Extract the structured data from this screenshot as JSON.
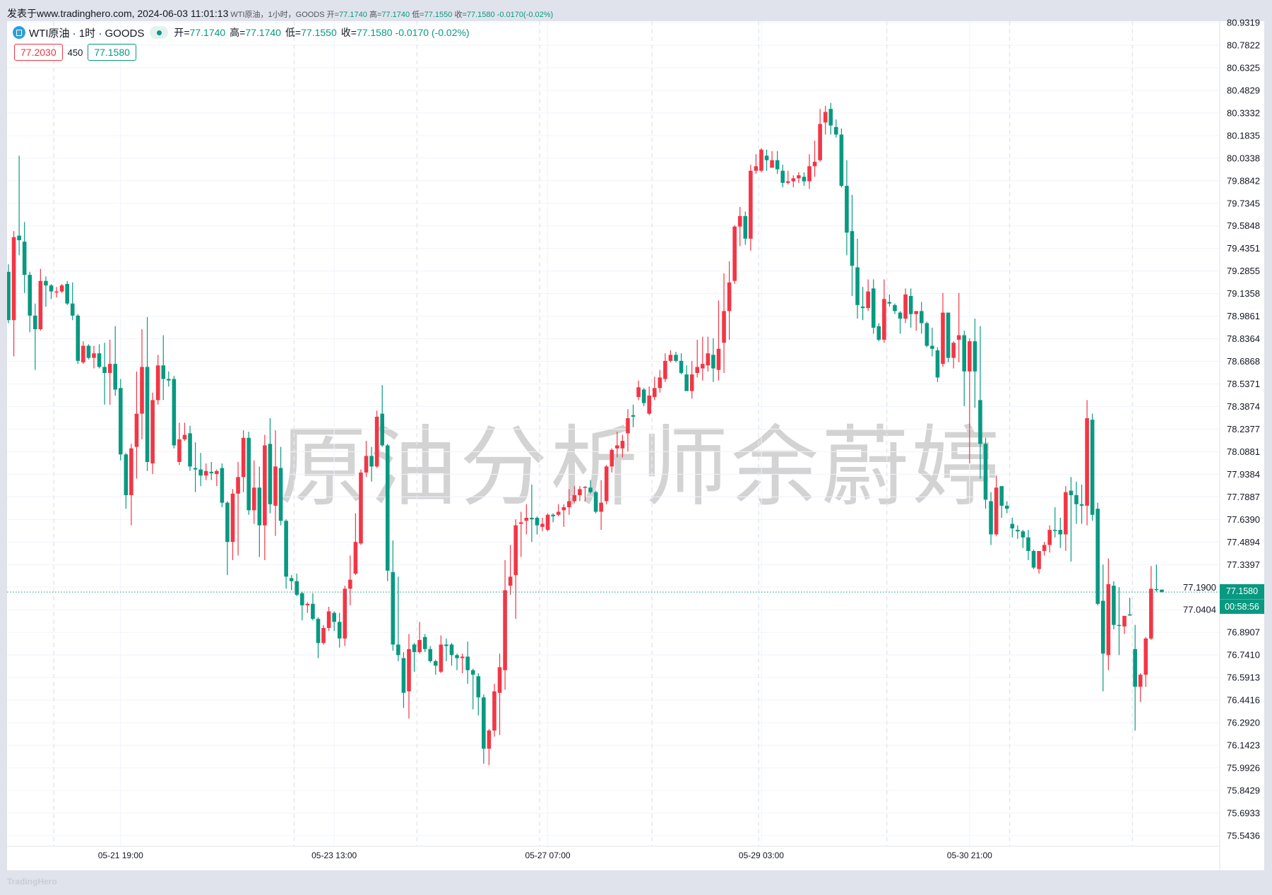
{
  "topbar": {
    "published": "发表于www.tradinghero.com, 2024-06-03 11:01:13",
    "summary_prefix": "WTI原油，1小时，GOODS",
    "o_label": "开=",
    "o": "77.1740",
    "h_label": "高=",
    "h": "77.1740",
    "l_label": "低=",
    "l": "77.1550",
    "c_label": "收=",
    "c": "77.1580",
    "change": "-0.0170(-0.02%)"
  },
  "legend": {
    "symbol": "WTI原油 · 1时 · GOODS",
    "o_label": "开=",
    "o": "77.1740",
    "h_label": "高=",
    "h": "77.1740",
    "l_label": "低=",
    "l": "77.1550",
    "c_label": "收=",
    "c": "77.1580",
    "change": "-0.0170 (-0.02%)",
    "status_icon": "market-open-dot"
  },
  "quote": {
    "sell": "77.2030",
    "spread": "450",
    "buy": "77.1580"
  },
  "watermark": "原油分析师余蔚婷",
  "footer_logo": "TradingHero",
  "price_tag": {
    "price": "77.1580",
    "countdown": "00:58:56"
  },
  "colors": {
    "up": "#f23645",
    "down": "#089981",
    "grid": "#f0f3fa",
    "axis_text": "#131722"
  },
  "chart_data": {
    "type": "candlestick",
    "title": "WTI原油 · 1时 · GOODS",
    "up_color_meaning": "red = rising (close > open), green = falling",
    "ylim": [
      75.47,
      80.9319
    ],
    "y_ticks": [
      "80.9319",
      "80.7822",
      "80.6325",
      "80.4829",
      "80.3332",
      "80.1835",
      "80.0338",
      "79.8842",
      "79.7345",
      "79.5848",
      "79.4351",
      "79.2855",
      "79.1358",
      "78.9861",
      "78.8364",
      "78.6868",
      "78.5371",
      "78.3874",
      "78.2377",
      "78.0881",
      "77.9384",
      "77.7887",
      "77.6390",
      "77.4894",
      "77.3397",
      "77.1900",
      "77.0404",
      "76.8907",
      "76.7410",
      "76.5913",
      "76.4416",
      "76.2920",
      "76.1423",
      "75.9926",
      "75.8429",
      "75.6933",
      "75.5436"
    ],
    "x_ticks": [
      {
        "label": "05-21 19:00",
        "bar": 21
      },
      {
        "label": "05-23 13:00",
        "bar": 61
      },
      {
        "label": "05-27 07:00",
        "bar": 101
      },
      {
        "label": "05-29 03:00",
        "bar": 141
      },
      {
        "label": "05-30 21:00",
        "bar": 180
      }
    ],
    "session_breaks": [
      9,
      54,
      77,
      100,
      121,
      141,
      165,
      188,
      211
    ],
    "last_price": 77.158,
    "grid": true,
    "ohlc": [
      [
        79.28,
        79.33,
        78.94,
        78.96
      ],
      [
        78.96,
        79.55,
        78.72,
        79.51
      ],
      [
        79.52,
        80.05,
        79.39,
        79.49
      ],
      [
        79.48,
        79.61,
        79.14,
        79.26
      ],
      [
        79.26,
        79.28,
        78.88,
        78.99
      ],
      [
        78.99,
        79.07,
        78.63,
        78.9
      ],
      [
        78.9,
        79.3,
        78.89,
        79.22
      ],
      [
        79.22,
        79.25,
        79.05,
        79.19
      ],
      [
        79.19,
        79.2,
        79.1,
        79.15
      ],
      [
        79.15,
        79.18,
        79.11,
        79.15
      ],
      [
        79.15,
        79.2,
        79.14,
        79.19
      ],
      [
        79.2,
        79.22,
        79.06,
        79.07
      ],
      [
        79.07,
        79.21,
        78.96,
        78.99
      ],
      [
        78.99,
        79.0,
        78.67,
        78.69
      ],
      [
        78.68,
        78.82,
        78.67,
        78.79
      ],
      [
        78.79,
        78.8,
        78.7,
        78.71
      ],
      [
        78.71,
        78.79,
        78.64,
        78.74
      ],
      [
        78.74,
        78.8,
        78.64,
        78.65
      ],
      [
        78.65,
        78.81,
        78.4,
        78.61
      ],
      [
        78.61,
        78.83,
        78.4,
        78.67
      ],
      [
        78.67,
        78.92,
        78.46,
        78.5
      ],
      [
        78.51,
        78.57,
        78.03,
        78.07
      ],
      [
        78.07,
        78.08,
        77.71,
        77.8
      ],
      [
        77.8,
        78.14,
        77.6,
        78.11
      ],
      [
        78.12,
        78.62,
        77.91,
        78.34
      ],
      [
        78.34,
        78.9,
        78.17,
        78.65
      ],
      [
        78.65,
        78.98,
        77.96,
        78.02
      ],
      [
        78.01,
        78.48,
        77.94,
        78.43
      ],
      [
        78.43,
        78.73,
        78.4,
        78.66
      ],
      [
        78.66,
        78.86,
        78.43,
        78.57
      ],
      [
        78.57,
        78.62,
        78.52,
        78.56
      ],
      [
        78.57,
        78.59,
        78.11,
        78.13
      ],
      [
        78.02,
        78.28,
        78.0,
        78.17
      ],
      [
        78.17,
        78.28,
        78.16,
        78.2
      ],
      [
        78.21,
        78.26,
        77.96,
        77.99
      ],
      [
        77.98,
        78.15,
        77.82,
        77.97
      ],
      [
        77.97,
        78.08,
        77.86,
        77.93
      ],
      [
        77.93,
        78.01,
        77.9,
        77.96
      ],
      [
        77.955,
        78.02,
        77.9,
        77.945
      ],
      [
        77.94,
        77.97,
        77.86,
        77.96
      ],
      [
        77.98,
        78.01,
        77.72,
        77.75
      ],
      [
        77.75,
        77.76,
        77.27,
        77.49
      ],
      [
        77.49,
        77.84,
        77.37,
        77.81
      ],
      [
        77.81,
        78.02,
        77.4,
        77.92
      ],
      [
        77.92,
        78.23,
        77.82,
        78.18
      ],
      [
        78.18,
        78.22,
        77.67,
        77.7
      ],
      [
        77.7,
        78.03,
        77.61,
        77.85
      ],
      [
        77.85,
        77.99,
        77.39,
        77.6
      ],
      [
        77.6,
        78.2,
        77.37,
        78.13
      ],
      [
        78.14,
        78.31,
        77.68,
        77.74
      ],
      [
        77.73,
        78.23,
        77.53,
        77.99
      ],
      [
        77.98,
        78.12,
        77.6,
        77.63
      ],
      [
        77.63,
        77.64,
        77.18,
        77.26
      ],
      [
        77.25,
        77.27,
        77.17,
        77.23
      ],
      [
        77.23,
        77.28,
        77.13,
        77.14
      ],
      [
        77.15,
        77.16,
        76.97,
        77.07
      ],
      [
        77.07,
        77.09,
        77.02,
        77.08
      ],
      [
        77.08,
        77.15,
        76.97,
        76.98
      ],
      [
        76.98,
        76.99,
        76.72,
        76.82
      ],
      [
        76.82,
        76.94,
        76.81,
        76.92
      ],
      [
        76.92,
        77.06,
        76.9,
        77.03
      ],
      [
        77.02,
        77.03,
        76.9,
        76.96
      ],
      [
        76.96,
        77.02,
        76.79,
        76.85
      ],
      [
        76.85,
        77.2,
        76.8,
        77.18
      ],
      [
        77.18,
        77.4,
        77.07,
        77.24
      ],
      [
        77.28,
        77.68,
        77.27,
        77.49
      ],
      [
        77.48,
        77.97,
        77.47,
        77.95
      ],
      [
        77.95,
        78.16,
        77.92,
        78.06
      ],
      [
        78.06,
        78.12,
        77.89,
        77.99
      ],
      [
        77.99,
        78.36,
        77.98,
        78.32
      ],
      [
        78.34,
        78.53,
        78.12,
        78.13
      ],
      [
        78.13,
        78.14,
        77.23,
        77.3
      ],
      [
        77.29,
        77.5,
        76.77,
        76.81
      ],
      [
        76.81,
        77.26,
        76.7,
        76.74
      ],
      [
        76.72,
        76.76,
        76.39,
        76.49
      ],
      [
        76.5,
        76.88,
        76.32,
        76.78
      ],
      [
        76.81,
        76.82,
        76.63,
        76.76
      ],
      [
        76.76,
        76.96,
        76.75,
        76.84
      ],
      [
        76.86,
        76.88,
        76.76,
        76.78
      ],
      [
        76.78,
        76.8,
        76.69,
        76.7
      ],
      [
        76.7,
        76.71,
        76.61,
        76.67
      ],
      [
        76.63,
        76.87,
        76.62,
        76.81
      ],
      [
        76.81,
        76.85,
        76.7,
        76.8
      ],
      [
        76.81,
        76.82,
        76.67,
        76.74
      ],
      [
        76.74,
        76.75,
        76.64,
        76.72
      ],
      [
        76.72,
        76.75,
        76.62,
        76.73
      ],
      [
        76.73,
        76.83,
        76.55,
        76.64
      ],
      [
        76.64,
        76.65,
        76.38,
        76.61
      ],
      [
        76.6,
        76.62,
        76.34,
        76.46
      ],
      [
        76.46,
        76.48,
        76.02,
        76.12
      ],
      [
        76.12,
        76.25,
        76.01,
        76.24
      ],
      [
        76.24,
        76.55,
        76.2,
        76.5
      ],
      [
        76.49,
        76.75,
        76.21,
        76.66
      ],
      [
        76.64,
        77.37,
        76.51,
        77.17
      ],
      [
        77.2,
        77.47,
        77.14,
        77.26
      ],
      [
        77.27,
        77.64,
        76.98,
        77.6
      ],
      [
        77.61,
        77.69,
        77.39,
        77.62
      ],
      [
        77.63,
        77.74,
        77.54,
        77.65
      ],
      [
        77.65,
        77.87,
        77.49,
        77.64
      ],
      [
        77.65,
        77.66,
        77.54,
        77.6
      ],
      [
        77.59,
        77.65,
        77.56,
        77.61
      ],
      [
        77.57,
        77.68,
        77.56,
        77.67
      ],
      [
        77.67,
        77.68,
        77.62,
        77.66
      ],
      [
        77.67,
        77.74,
        77.66,
        77.69
      ],
      [
        77.7,
        77.74,
        77.59,
        77.72
      ],
      [
        77.72,
        77.84,
        77.67,
        77.76
      ],
      [
        77.76,
        77.86,
        77.75,
        77.8
      ],
      [
        77.8,
        77.86,
        77.76,
        77.84
      ],
      [
        77.85,
        77.86,
        77.76,
        77.855
      ],
      [
        77.85,
        77.9,
        77.81,
        77.82
      ],
      [
        77.82,
        77.83,
        77.68,
        77.69
      ],
      [
        77.69,
        77.9,
        77.57,
        77.75
      ],
      [
        77.76,
        78.0,
        77.74,
        77.99
      ],
      [
        77.99,
        78.11,
        77.95,
        78.1
      ],
      [
        78.11,
        78.22,
        78.05,
        78.13
      ],
      [
        78.11,
        78.2,
        78.05,
        78.16
      ],
      [
        78.21,
        78.37,
        78.09,
        78.31
      ],
      [
        78.33,
        78.4,
        78.25,
        78.32
      ],
      [
        78.45,
        78.56,
        78.43,
        78.515
      ],
      [
        78.5,
        78.51,
        78.39,
        78.41
      ],
      [
        78.34,
        78.52,
        78.33,
        78.46
      ],
      [
        78.45,
        78.585,
        78.43,
        78.51
      ],
      [
        78.51,
        78.63,
        78.48,
        78.58
      ],
      [
        78.57,
        78.74,
        78.55,
        78.69
      ],
      [
        78.69,
        78.76,
        78.68,
        78.73
      ],
      [
        78.73,
        78.75,
        78.68,
        78.69
      ],
      [
        78.69,
        78.74,
        78.6,
        78.61
      ],
      [
        78.6,
        78.66,
        78.49,
        78.49
      ],
      [
        78.49,
        78.69,
        78.44,
        78.6
      ],
      [
        78.61,
        78.83,
        78.58,
        78.65
      ],
      [
        78.64,
        78.85,
        78.56,
        78.67
      ],
      [
        78.66,
        78.85,
        78.62,
        78.74
      ],
      [
        78.73,
        78.84,
        78.55,
        78.64
      ],
      [
        78.63,
        79.09,
        78.56,
        78.77
      ],
      [
        78.81,
        79.27,
        78.61,
        79.02
      ],
      [
        79.02,
        79.35,
        78.83,
        79.21
      ],
      [
        79.22,
        79.59,
        79.2,
        79.58
      ],
      [
        79.58,
        79.71,
        79.45,
        79.65
      ],
      [
        79.65,
        79.68,
        79.46,
        79.5
      ],
      [
        79.5,
        79.99,
        79.42,
        79.95
      ],
      [
        79.95,
        80.06,
        79.93,
        79.98
      ],
      [
        79.95,
        80.1,
        79.94,
        80.09
      ],
      [
        80.05,
        80.09,
        79.95,
        80.02
      ],
      [
        79.97,
        80.08,
        79.97,
        80.02
      ],
      [
        80.02,
        80.08,
        79.93,
        79.96
      ],
      [
        79.95,
        79.99,
        79.84,
        79.87
      ],
      [
        79.87,
        79.95,
        79.86,
        79.88
      ],
      [
        79.88,
        79.92,
        79.84,
        79.9
      ],
      [
        79.9,
        79.94,
        79.87,
        79.92
      ],
      [
        79.91,
        79.94,
        79.85,
        79.88
      ],
      [
        79.88,
        80.06,
        79.83,
        79.98
      ],
      [
        79.98,
        80.15,
        79.91,
        80.01
      ],
      [
        80.02,
        80.36,
        80.01,
        80.26
      ],
      [
        80.27,
        80.38,
        80.19,
        80.34
      ],
      [
        80.36,
        80.4,
        80.19,
        80.25
      ],
      [
        80.24,
        80.29,
        80.17,
        80.19
      ],
      [
        80.19,
        80.23,
        79.84,
        79.85
      ],
      [
        79.85,
        80.02,
        79.39,
        79.54
      ],
      [
        79.55,
        79.79,
        79.12,
        79.32
      ],
      [
        79.31,
        79.5,
        78.97,
        79.06
      ],
      [
        79.05,
        79.18,
        78.96,
        79.04
      ],
      [
        79.04,
        79.23,
        79.02,
        79.15
      ],
      [
        79.17,
        79.23,
        78.87,
        78.91
      ],
      [
        78.92,
        78.94,
        78.82,
        78.83
      ],
      [
        78.83,
        79.23,
        78.81,
        79.1
      ],
      [
        79.08,
        79.13,
        79.05,
        79.07
      ],
      [
        79.06,
        79.07,
        79.0,
        79.02
      ],
      [
        79.01,
        79.02,
        78.87,
        78.97
      ],
      [
        78.97,
        79.17,
        78.94,
        79.13
      ],
      [
        79.12,
        79.17,
        78.91,
        79.0
      ],
      [
        79.0,
        79.02,
        78.89,
        79.02
      ],
      [
        79.02,
        79.08,
        78.87,
        78.94
      ],
      [
        78.94,
        78.95,
        78.78,
        78.79
      ],
      [
        78.79,
        78.91,
        78.72,
        78.77
      ],
      [
        78.76,
        78.78,
        78.55,
        78.58
      ],
      [
        78.67,
        79.14,
        78.65,
        79.01
      ],
      [
        79.01,
        79.01,
        78.68,
        78.71
      ],
      [
        78.71,
        78.82,
        78.64,
        78.81
      ],
      [
        78.83,
        79.14,
        78.68,
        78.86
      ],
      [
        78.86,
        78.89,
        78.39,
        78.62
      ],
      [
        78.62,
        78.84,
        78.01,
        78.82
      ],
      [
        78.82,
        78.97,
        78.38,
        78.62
      ],
      [
        78.43,
        78.92,
        77.91,
        78.14
      ],
      [
        78.14,
        78.18,
        77.71,
        77.77
      ],
      [
        77.76,
        77.82,
        77.47,
        77.54
      ],
      [
        77.54,
        77.93,
        77.53,
        77.85
      ],
      [
        77.86,
        77.86,
        77.65,
        77.73
      ],
      [
        77.73,
        77.76,
        77.68,
        77.71
      ],
      [
        77.61,
        77.65,
        77.52,
        77.58
      ],
      [
        77.57,
        77.6,
        77.51,
        77.56
      ],
      [
        77.56,
        77.57,
        77.45,
        77.52
      ],
      [
        77.52,
        77.57,
        77.37,
        77.43
      ],
      [
        77.43,
        77.44,
        77.31,
        77.32
      ],
      [
        77.31,
        77.43,
        77.28,
        77.43
      ],
      [
        77.43,
        77.49,
        77.4,
        77.47
      ],
      [
        77.47,
        77.6,
        77.42,
        77.57
      ],
      [
        77.57,
        77.72,
        77.52,
        77.567
      ],
      [
        77.57,
        77.65,
        77.45,
        77.54
      ],
      [
        77.54,
        77.86,
        77.43,
        77.82
      ],
      [
        77.83,
        77.92,
        77.36,
        77.8
      ],
      [
        77.8,
        77.89,
        77.61,
        77.74
      ],
      [
        77.74,
        77.87,
        77.61,
        77.73
      ],
      [
        77.73,
        78.43,
        77.6,
        78.31
      ],
      [
        78.3,
        78.34,
        77.63,
        77.67
      ],
      [
        77.71,
        77.75,
        77.07,
        77.08
      ],
      [
        77.1,
        77.34,
        76.5,
        76.75
      ],
      [
        76.74,
        77.38,
        76.64,
        77.21
      ],
      [
        77.2,
        77.23,
        76.91,
        76.94
      ],
      [
        76.94,
        77.19,
        76.74,
        76.935
      ],
      [
        76.93,
        77.0,
        76.88,
        77.0
      ],
      [
        77.01,
        77.12,
        77.0,
        77.006
      ],
      [
        76.78,
        76.94,
        76.24,
        76.53
      ],
      [
        76.53,
        76.62,
        76.43,
        76.61
      ],
      [
        76.61,
        76.86,
        76.53,
        76.85
      ],
      [
        76.85,
        77.33,
        76.84,
        77.18
      ],
      [
        77.178,
        77.34,
        77.16,
        77.174
      ],
      [
        77.174,
        77.174,
        77.155,
        77.158
      ]
    ]
  }
}
